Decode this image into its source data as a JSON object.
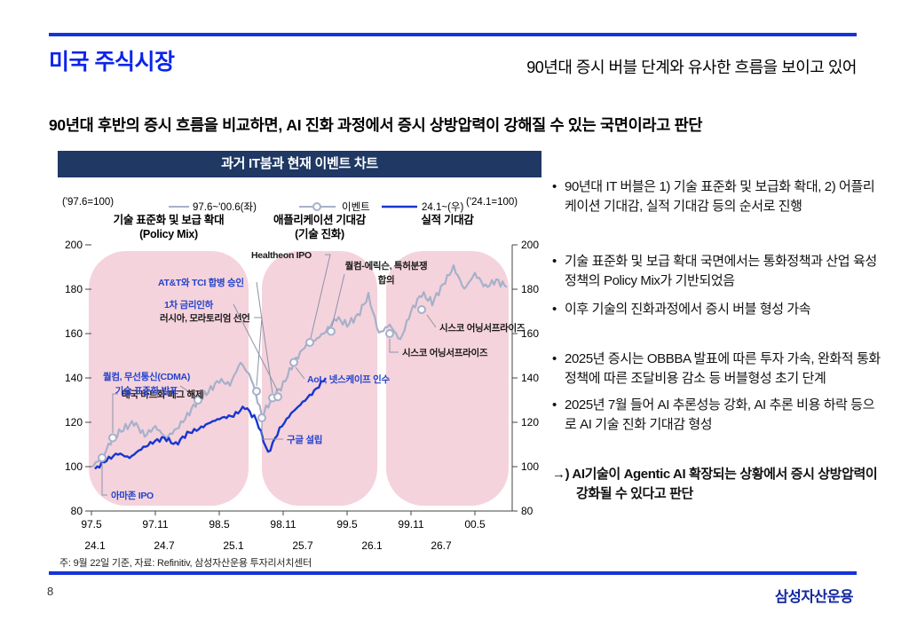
{
  "slide": {
    "page_number": "8",
    "logo_text": "삼성자산운용"
  },
  "header": {
    "title": "미국 주식시장",
    "right_note": "90년대 증시 버블 단계와 유사한 흐름을 보이고 있어",
    "statement": "90년대 후반의 증시 흐름을 비교하면, AI 진화 과정에서 증시 상방압력이 강해질 수 있는 국면이라고 판단"
  },
  "chart": {
    "title": "과거 IT붐과 현재 이벤트 차트",
    "footnote": "주: 9월 22일 기준, 자료: Refinitiv, 삼성자산운용 투자리서치센터"
  },
  "chart_data": {
    "type": "line",
    "title": "과거 IT붐과 현재 이벤트 차트",
    "ylim": [
      80,
      200
    ],
    "yticks": [
      80,
      100,
      120,
      140,
      160,
      180,
      200
    ],
    "left_scale_note": "('97.6=100)",
    "right_scale_note": "('24.1=100)",
    "x_ticks_old": [
      "97.5",
      "97.11",
      "98.5",
      "98.11",
      "99.5",
      "99.11",
      "00.5"
    ],
    "x_ticks_new": [
      "24.1",
      "24.7",
      "25.1",
      "25.7",
      "26.1",
      "26.7"
    ],
    "legend": [
      {
        "label": "97.6~'00.6(좌)",
        "style": "line-gray"
      },
      {
        "label": "이벤트",
        "style": "line-gray-circle"
      },
      {
        "label": "24.1~(우)",
        "style": "line-blue"
      }
    ],
    "phases": [
      {
        "line1": "기술 표준화 및 보급 확대",
        "line2": "(Policy Mix)"
      },
      {
        "line1": "애플리케이션 기대감",
        "line2": "(기술 진화)"
      },
      {
        "line1": "실적 기대감",
        "line2": ""
      }
    ],
    "series": [
      {
        "name": "97.6~'00.6(좌)",
        "axis": "left",
        "start": "1997.5",
        "freq": "monthly",
        "values": [
          100,
          104,
          113,
          117,
          120,
          114,
          118,
          113,
          117,
          123,
          130,
          134,
          139,
          137,
          147,
          140,
          123,
          131,
          137,
          147,
          154,
          157,
          161,
          167,
          164,
          168,
          177,
          160,
          164,
          157,
          170,
          178,
          174,
          182,
          190,
          180,
          187,
          181,
          184,
          181
        ]
      },
      {
        "name": "24.1~(우)",
        "axis": "right",
        "start": "2024.1",
        "freq": "monthly",
        "values": [
          99,
          103,
          106,
          104,
          108,
          111,
          113,
          110,
          115,
          117,
          120,
          122,
          123,
          127,
          121,
          106,
          117,
          124,
          129,
          134,
          140
        ]
      }
    ],
    "events": [
      {
        "label": "아마존 IPO",
        "label2": "",
        "month": 1,
        "value": 104,
        "type": "blue"
      },
      {
        "label": "태국 바트화 페그 해제",
        "label2": "",
        "month": 2,
        "value": 113,
        "type": "black"
      },
      {
        "label": "퀄컴, 무선통신(CDMA)",
        "label2": "기술 표준화 발표",
        "month": 10,
        "value": 130,
        "type": "blue"
      },
      {
        "label": "러시아, 모라토리엄 선언",
        "label2": "",
        "month": 15.5,
        "value": 134,
        "type": "black"
      },
      {
        "label": "구글 설립",
        "label2": "",
        "month": 16,
        "value": 122,
        "type": "blue"
      },
      {
        "label": "AT&T와 TCI 합병 승인",
        "label2": "",
        "month": 17,
        "value": 131,
        "type": "blue"
      },
      {
        "label": "1차 금리인하",
        "label2": "",
        "month": 17.5,
        "value": 131.5,
        "type": "blue"
      },
      {
        "label": "AoL, 넷스케이프 인수",
        "label2": "",
        "month": 19,
        "value": 147,
        "type": "blue"
      },
      {
        "label": "Healtheon IPO",
        "label2": "",
        "month": 20.5,
        "value": 156,
        "type": "black"
      },
      {
        "label": "퀄컴-에릭슨, 특허분쟁",
        "label2": "합의",
        "month": 22.5,
        "value": 161,
        "type": "black"
      },
      {
        "label": "시스코 어닝서프라이즈",
        "label2": "",
        "month": 28,
        "value": 160,
        "type": "black"
      },
      {
        "label": "시스코 어닝서프라이즈",
        "label2": "",
        "month": 31,
        "value": 170.8,
        "type": "black"
      }
    ]
  },
  "bullets": [
    {
      "text": "90년대 IT 버블은 1) 기술 표준화 및 보급화 확대, 2) 어플리케이션 기대감, 실적 기대감 등의 순서로 진행"
    },
    {
      "text": "기술 표준화 및 보급 확대 국면에서는 통화정책과 산업 육성 정책의 Policy Mix가 기반되었음"
    },
    {
      "text": "이후 기술의 진화과정에서 증시 버블 형성 가속"
    },
    {
      "text": "2025년 증시는 OBBBA 발표에 따른 투자 가속, 완화적 통화정책에 따른 조달비용 감소 등 버블형성 초기 단계"
    },
    {
      "text": "2025년 7월 들어 AI 추론성능 강화, AI 추론 비용 하락 등으로 AI 기술 진화 기대감 형성"
    }
  ],
  "conclusion": {
    "prefix": "→)",
    "text": "AI기술이 Agentic AI 확장되는 상황에서 증시 상방압력이 강화될 수 있다고 판단"
  },
  "colors": {
    "accent_title": "#0b24ec",
    "rule_blue": "#1633d9",
    "navy_bar": "#1f3864",
    "panel_pink": "#f5d3dc",
    "old_series": "#a6b0ca",
    "new_series": "#1637d0",
    "event_blue": "#2343cc",
    "event_black": "#1a1a1a",
    "connector": "#8a93a8",
    "logo_blue": "#1428a0"
  }
}
